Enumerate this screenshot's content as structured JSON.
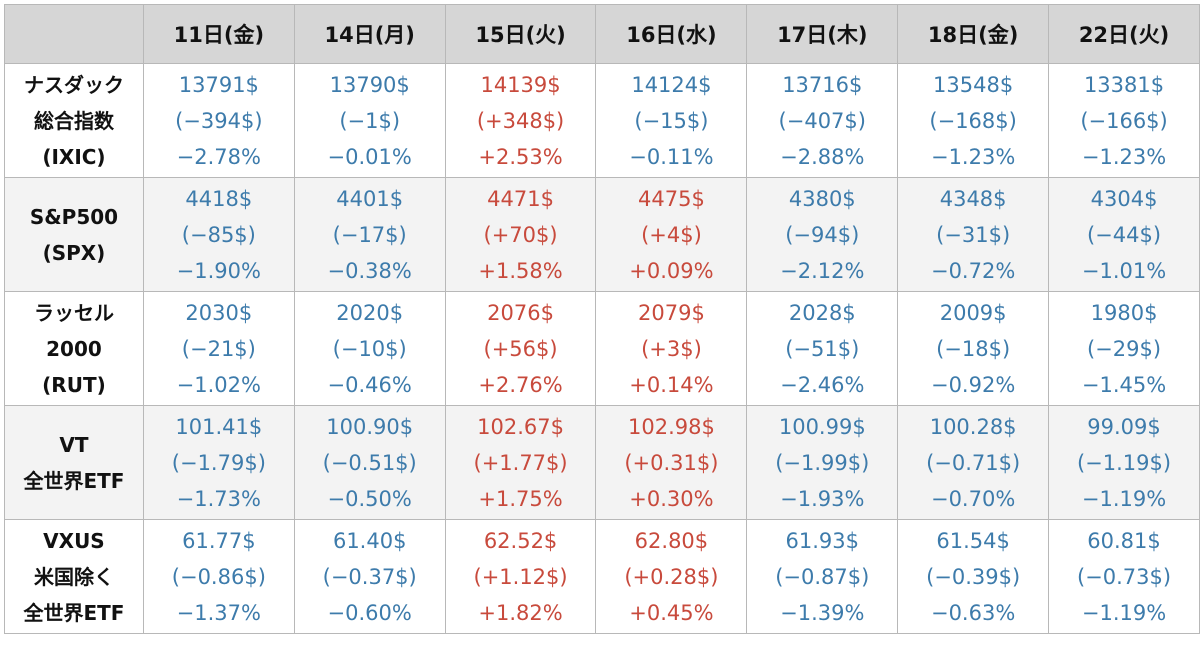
{
  "columns": [
    "11日(金)",
    "14日(月)",
    "15日(火)",
    "16日(水)",
    "17日(木)",
    "18日(金)",
    "22日(火)"
  ],
  "colors": {
    "up": "#c84a3c",
    "down": "#3d7bab"
  },
  "rows": [
    {
      "label": [
        "ナスダック",
        "総合指数",
        "(IXIC)"
      ],
      "cells": [
        {
          "price": "13791$",
          "change": "(−394$)",
          "pct": "−2.78%",
          "dir": "down"
        },
        {
          "price": "13790$",
          "change": "(−1$)",
          "pct": "−0.01%",
          "dir": "down"
        },
        {
          "price": "14139$",
          "change": "(+348$)",
          "pct": "+2.53%",
          "dir": "up"
        },
        {
          "price": "14124$",
          "change": "(−15$)",
          "pct": "−0.11%",
          "dir": "down"
        },
        {
          "price": "13716$",
          "change": "(−407$)",
          "pct": "−2.88%",
          "dir": "down"
        },
        {
          "price": "13548$",
          "change": "(−168$)",
          "pct": "−1.23%",
          "dir": "down"
        },
        {
          "price": "13381$",
          "change": "(−166$)",
          "pct": "−1.23%",
          "dir": "down"
        }
      ]
    },
    {
      "label": [
        "S&P500",
        "(SPX)"
      ],
      "cells": [
        {
          "price": "4418$",
          "change": "(−85$)",
          "pct": "−1.90%",
          "dir": "down"
        },
        {
          "price": "4401$",
          "change": "(−17$)",
          "pct": "−0.38%",
          "dir": "down"
        },
        {
          "price": "4471$",
          "change": "(+70$)",
          "pct": "+1.58%",
          "dir": "up"
        },
        {
          "price": "4475$",
          "change": "(+4$)",
          "pct": "+0.09%",
          "dir": "up"
        },
        {
          "price": "4380$",
          "change": "(−94$)",
          "pct": "−2.12%",
          "dir": "down"
        },
        {
          "price": "4348$",
          "change": "(−31$)",
          "pct": "−0.72%",
          "dir": "down"
        },
        {
          "price": "4304$",
          "change": "(−44$)",
          "pct": "−1.01%",
          "dir": "down"
        }
      ]
    },
    {
      "label": [
        "ラッセル",
        "2000",
        "(RUT)"
      ],
      "cells": [
        {
          "price": "2030$",
          "change": "(−21$)",
          "pct": "−1.02%",
          "dir": "down"
        },
        {
          "price": "2020$",
          "change": "(−10$)",
          "pct": "−0.46%",
          "dir": "down"
        },
        {
          "price": "2076$",
          "change": "(+56$)",
          "pct": "+2.76%",
          "dir": "up"
        },
        {
          "price": "2079$",
          "change": "(+3$)",
          "pct": "+0.14%",
          "dir": "up"
        },
        {
          "price": "2028$",
          "change": "(−51$)",
          "pct": "−2.46%",
          "dir": "down"
        },
        {
          "price": "2009$",
          "change": "(−18$)",
          "pct": "−0.92%",
          "dir": "down"
        },
        {
          "price": "1980$",
          "change": "(−29$)",
          "pct": "−1.45%",
          "dir": "down"
        }
      ]
    },
    {
      "label": [
        "VT",
        "全世界ETF"
      ],
      "cells": [
        {
          "price": "101.41$",
          "change": "(−1.79$)",
          "pct": "−1.73%",
          "dir": "down"
        },
        {
          "price": "100.90$",
          "change": "(−0.51$)",
          "pct": "−0.50%",
          "dir": "down"
        },
        {
          "price": "102.67$",
          "change": "(+1.77$)",
          "pct": "+1.75%",
          "dir": "up"
        },
        {
          "price": "102.98$",
          "change": "(+0.31$)",
          "pct": "+0.30%",
          "dir": "up"
        },
        {
          "price": "100.99$",
          "change": "(−1.99$)",
          "pct": "−1.93%",
          "dir": "down"
        },
        {
          "price": "100.28$",
          "change": "(−0.71$)",
          "pct": "−0.70%",
          "dir": "down"
        },
        {
          "price": "99.09$",
          "change": "(−1.19$)",
          "pct": "−1.19%",
          "dir": "down"
        }
      ]
    },
    {
      "label": [
        "VXUS",
        "米国除く",
        "全世界ETF"
      ],
      "cells": [
        {
          "price": "61.77$",
          "change": "(−0.86$)",
          "pct": "−1.37%",
          "dir": "down"
        },
        {
          "price": "61.40$",
          "change": "(−0.37$)",
          "pct": "−0.60%",
          "dir": "down"
        },
        {
          "price": "62.52$",
          "change": "(+1.12$)",
          "pct": "+1.82%",
          "dir": "up"
        },
        {
          "price": "62.80$",
          "change": "(+0.28$)",
          "pct": "+0.45%",
          "dir": "up"
        },
        {
          "price": "61.93$",
          "change": "(−0.87$)",
          "pct": "−1.39%",
          "dir": "down"
        },
        {
          "price": "61.54$",
          "change": "(−0.39$)",
          "pct": "−0.63%",
          "dir": "down"
        },
        {
          "price": "60.81$",
          "change": "(−0.73$)",
          "pct": "−1.19%",
          "dir": "down"
        }
      ]
    }
  ]
}
